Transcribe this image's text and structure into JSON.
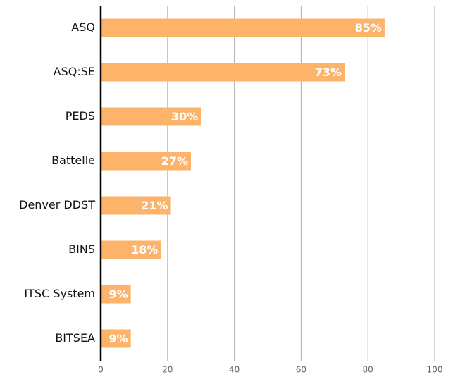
{
  "chart_data": {
    "type": "barh",
    "categories": [
      "ASQ",
      "ASQ:SE",
      "PEDS",
      "Battelle",
      "Denver DDST",
      "BINS",
      "ITSC System",
      "BITSEA"
    ],
    "values": [
      85,
      73,
      30,
      27,
      21,
      18,
      9,
      9
    ],
    "value_labels": [
      "85%",
      "73%",
      "30%",
      "27%",
      "21%",
      "18%",
      "9%",
      "9%"
    ],
    "color": "#fdb36a",
    "xlim": [
      0,
      100
    ],
    "xticks": [
      0,
      20,
      40,
      60,
      80,
      100
    ],
    "grid": true
  }
}
